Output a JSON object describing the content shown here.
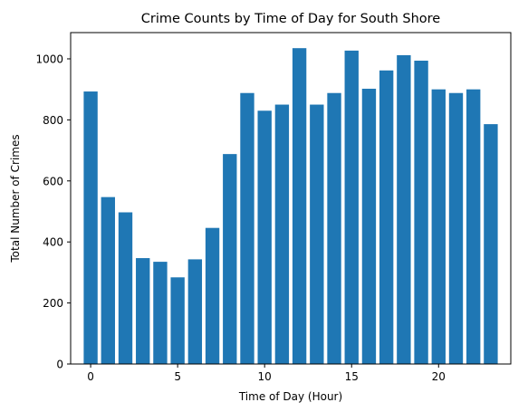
{
  "chart_data": {
    "type": "bar",
    "title": "Crime Counts by Time of Day for South Shore",
    "xlabel": "Time of Day (Hour)",
    "ylabel": "Total Number of Crimes",
    "categories": [
      0,
      1,
      2,
      3,
      4,
      5,
      6,
      7,
      8,
      9,
      10,
      11,
      12,
      13,
      14,
      15,
      16,
      17,
      18,
      19,
      20,
      21,
      22,
      23
    ],
    "values": [
      893,
      547,
      497,
      347,
      335,
      284,
      343,
      446,
      688,
      888,
      830,
      850,
      1035,
      850,
      888,
      1027,
      902,
      962,
      1012,
      994,
      900,
      888,
      900,
      786
    ],
    "xlim": [
      -1.15,
      24.15
    ],
    "ylim": [
      0,
      1086
    ],
    "xticks": [
      0,
      5,
      10,
      15,
      20
    ],
    "yticks": [
      0,
      200,
      400,
      600,
      800,
      1000
    ],
    "bar_color": "#1f77b4",
    "grid": false
  }
}
